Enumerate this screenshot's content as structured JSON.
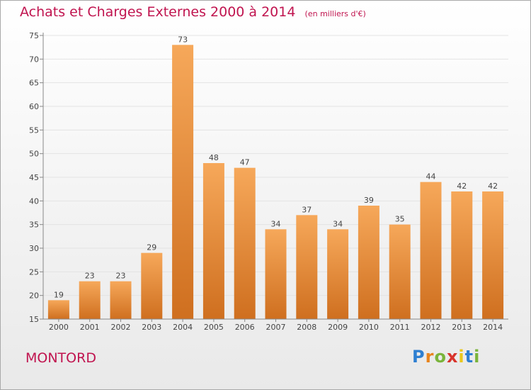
{
  "header": {
    "title": "Achats et Charges Externes 2000 à 2014",
    "unit": "(en milliers d'€)"
  },
  "footer": {
    "commune": "MONTORD",
    "brand_letters": [
      "P",
      "r",
      "o",
      "x",
      "i",
      "t",
      "i"
    ]
  },
  "colors": {
    "title": "#c0144f",
    "bar_light": "#f6a85a",
    "bar_dark": "#cf6f1f",
    "gridline": "#e3e3e3"
  },
  "chart_data": {
    "type": "bar",
    "categories": [
      "2000",
      "2001",
      "2002",
      "2003",
      "2004",
      "2005",
      "2006",
      "2007",
      "2008",
      "2009",
      "2010",
      "2011",
      "2012",
      "2013",
      "2014"
    ],
    "values": [
      19,
      23,
      23,
      29,
      73,
      48,
      47,
      34,
      37,
      34,
      39,
      35,
      44,
      42,
      42
    ],
    "value_labels": [
      "19",
      "23",
      "23",
      "29",
      "73",
      "48",
      "47",
      "34",
      "37",
      "34",
      "39",
      "35",
      "44",
      "42",
      "42"
    ],
    "title": "Achats et Charges Externes 2000 à 2014",
    "xlabel": "",
    "ylabel": "",
    "ylim": [
      15,
      75
    ],
    "yticks": [
      15,
      20,
      25,
      30,
      35,
      40,
      45,
      50,
      55,
      60,
      65,
      70,
      75
    ],
    "grid": true,
    "legend": "none"
  }
}
